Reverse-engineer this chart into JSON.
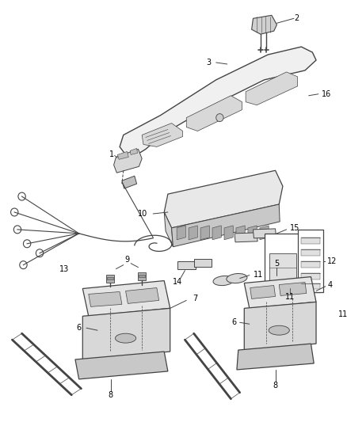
{
  "bg_color": "#ffffff",
  "line_color": "#444444",
  "text_color": "#000000",
  "fig_width": 4.38,
  "fig_height": 5.33,
  "dpi": 100
}
